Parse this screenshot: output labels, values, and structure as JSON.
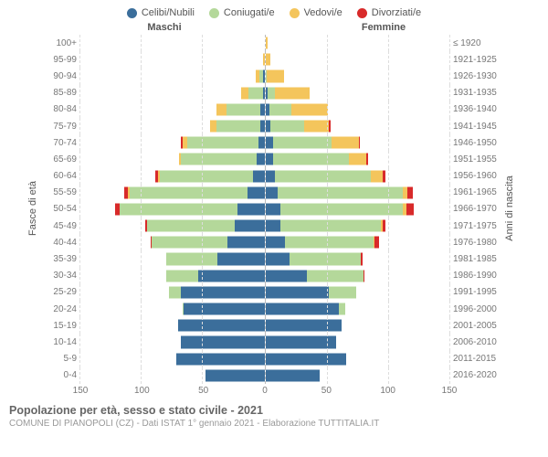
{
  "type": "population-pyramid",
  "legend": [
    {
      "label": "Celibi/Nubili",
      "color": "#3b6e9b"
    },
    {
      "label": "Coniugati/e",
      "color": "#b4d89a"
    },
    {
      "label": "Vedovi/e",
      "color": "#f4c55c"
    },
    {
      "label": "Divorziati/e",
      "color": "#d82a2a"
    }
  ],
  "header_left": "Maschi",
  "header_right": "Femmine",
  "ylabel_left": "Fasce di età",
  "ylabel_right": "Anni di nascita",
  "xmax": 150,
  "xticks_left": [
    150,
    100,
    50,
    0
  ],
  "xticks_right": [
    0,
    50,
    100,
    150
  ],
  "grid_step": 50,
  "colors": {
    "single": "#3b6e9b",
    "married": "#b4d89a",
    "widowed": "#f4c55c",
    "divorced": "#d82a2a",
    "grid": "#dddddd",
    "center": "#bbbbbb",
    "text": "#666666",
    "bg": "#ffffff"
  },
  "rows": [
    {
      "age": "100+",
      "year": "≤ 1920",
      "m": {
        "s": 0,
        "m": 0,
        "w": 0,
        "d": 0
      },
      "f": {
        "s": 0,
        "m": 0,
        "w": 2,
        "d": 0
      }
    },
    {
      "age": "95-99",
      "year": "1921-1925",
      "m": {
        "s": 0,
        "m": 0,
        "w": 1,
        "d": 0
      },
      "f": {
        "s": 0,
        "m": 0,
        "w": 4,
        "d": 0
      }
    },
    {
      "age": "90-94",
      "year": "1926-1930",
      "m": {
        "s": 1,
        "m": 3,
        "w": 3,
        "d": 0
      },
      "f": {
        "s": 0,
        "m": 1,
        "w": 14,
        "d": 0
      }
    },
    {
      "age": "85-89",
      "year": "1931-1935",
      "m": {
        "s": 1,
        "m": 12,
        "w": 6,
        "d": 0
      },
      "f": {
        "s": 2,
        "m": 6,
        "w": 28,
        "d": 0
      }
    },
    {
      "age": "80-84",
      "year": "1936-1940",
      "m": {
        "s": 3,
        "m": 28,
        "w": 8,
        "d": 0
      },
      "f": {
        "s": 3,
        "m": 18,
        "w": 30,
        "d": 0
      }
    },
    {
      "age": "75-79",
      "year": "1941-1945",
      "m": {
        "s": 3,
        "m": 36,
        "w": 5,
        "d": 0
      },
      "f": {
        "s": 4,
        "m": 28,
        "w": 20,
        "d": 1
      }
    },
    {
      "age": "70-74",
      "year": "1946-1950",
      "m": {
        "s": 5,
        "m": 58,
        "w": 4,
        "d": 1
      },
      "f": {
        "s": 6,
        "m": 48,
        "w": 22,
        "d": 1
      }
    },
    {
      "age": "65-69",
      "year": "1951-1955",
      "m": {
        "s": 6,
        "m": 62,
        "w": 2,
        "d": 0
      },
      "f": {
        "s": 6,
        "m": 62,
        "w": 14,
        "d": 2
      }
    },
    {
      "age": "60-64",
      "year": "1956-1960",
      "m": {
        "s": 9,
        "m": 76,
        "w": 2,
        "d": 2
      },
      "f": {
        "s": 8,
        "m": 78,
        "w": 10,
        "d": 2
      }
    },
    {
      "age": "55-59",
      "year": "1961-1965",
      "m": {
        "s": 14,
        "m": 96,
        "w": 1,
        "d": 3
      },
      "f": {
        "s": 10,
        "m": 102,
        "w": 4,
        "d": 4
      }
    },
    {
      "age": "50-54",
      "year": "1966-1970",
      "m": {
        "s": 22,
        "m": 96,
        "w": 0,
        "d": 4
      },
      "f": {
        "s": 12,
        "m": 100,
        "w": 3,
        "d": 6
      }
    },
    {
      "age": "45-49",
      "year": "1971-1975",
      "m": {
        "s": 24,
        "m": 72,
        "w": 0,
        "d": 1
      },
      "f": {
        "s": 12,
        "m": 82,
        "w": 2,
        "d": 2
      }
    },
    {
      "age": "40-44",
      "year": "1976-1980",
      "m": {
        "s": 30,
        "m": 62,
        "w": 0,
        "d": 1
      },
      "f": {
        "s": 16,
        "m": 72,
        "w": 1,
        "d": 4
      }
    },
    {
      "age": "35-39",
      "year": "1981-1985",
      "m": {
        "s": 38,
        "m": 42,
        "w": 0,
        "d": 0
      },
      "f": {
        "s": 20,
        "m": 58,
        "w": 0,
        "d": 1
      }
    },
    {
      "age": "30-34",
      "year": "1986-1990",
      "m": {
        "s": 54,
        "m": 26,
        "w": 0,
        "d": 0
      },
      "f": {
        "s": 34,
        "m": 46,
        "w": 0,
        "d": 1
      }
    },
    {
      "age": "25-29",
      "year": "1991-1995",
      "m": {
        "s": 68,
        "m": 10,
        "w": 0,
        "d": 0
      },
      "f": {
        "s": 52,
        "m": 22,
        "w": 0,
        "d": 0
      }
    },
    {
      "age": "20-24",
      "year": "1996-2000",
      "m": {
        "s": 66,
        "m": 1,
        "w": 0,
        "d": 0
      },
      "f": {
        "s": 60,
        "m": 5,
        "w": 0,
        "d": 0
      }
    },
    {
      "age": "15-19",
      "year": "2001-2005",
      "m": {
        "s": 70,
        "m": 0,
        "w": 0,
        "d": 0
      },
      "f": {
        "s": 62,
        "m": 0,
        "w": 0,
        "d": 0
      }
    },
    {
      "age": "10-14",
      "year": "2006-2010",
      "m": {
        "s": 68,
        "m": 0,
        "w": 0,
        "d": 0
      },
      "f": {
        "s": 58,
        "m": 0,
        "w": 0,
        "d": 0
      }
    },
    {
      "age": "5-9",
      "year": "2011-2015",
      "m": {
        "s": 72,
        "m": 0,
        "w": 0,
        "d": 0
      },
      "f": {
        "s": 66,
        "m": 0,
        "w": 0,
        "d": 0
      }
    },
    {
      "age": "0-4",
      "year": "2016-2020",
      "m": {
        "s": 48,
        "m": 0,
        "w": 0,
        "d": 0
      },
      "f": {
        "s": 44,
        "m": 0,
        "w": 0,
        "d": 0
      }
    }
  ],
  "title": "Popolazione per età, sesso e stato civile - 2021",
  "subtitle": "COMUNE DI PIANOPOLI (CZ) - Dati ISTAT 1° gennaio 2021 - Elaborazione TUTTITALIA.IT"
}
